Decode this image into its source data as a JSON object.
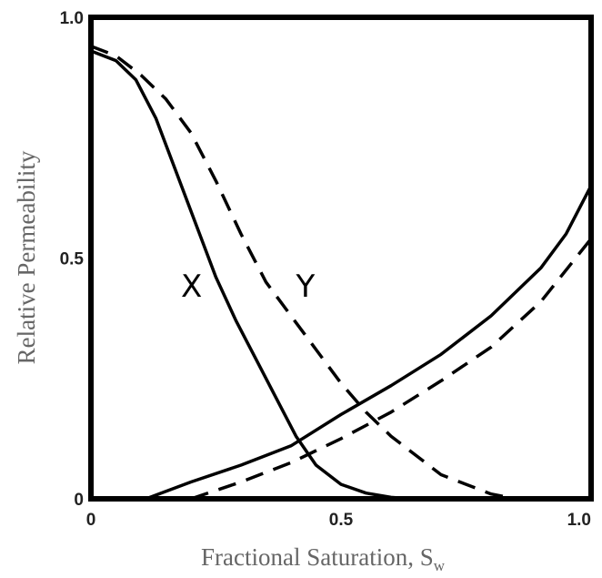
{
  "chart_data": {
    "type": "line",
    "title": "",
    "xlabel": "Fractional Saturation, S",
    "xlabel_subscript": "w",
    "ylabel": "Relative Permeability",
    "xlim": [
      0,
      1
    ],
    "ylim": [
      0,
      1
    ],
    "x_ticks": [
      "0",
      "0.5",
      "1.0"
    ],
    "y_ticks": [
      "0",
      "0.5",
      "1.0"
    ],
    "x_tick_values": [
      0,
      0.5,
      1
    ],
    "y_tick_values": [
      0,
      0.5,
      1
    ],
    "grid": false,
    "legend": "none",
    "curve_labels": [
      {
        "text": "X",
        "x": 0.18,
        "y": 0.42
      },
      {
        "text": "Y",
        "x": 0.41,
        "y": 0.42
      }
    ],
    "series": [
      {
        "style": "solid",
        "points": [
          [
            0,
            0.93
          ],
          [
            0.05,
            0.91
          ],
          [
            0.09,
            0.87
          ],
          [
            0.13,
            0.79
          ],
          [
            0.17,
            0.68
          ],
          [
            0.21,
            0.57
          ],
          [
            0.25,
            0.46
          ],
          [
            0.29,
            0.37
          ],
          [
            0.33,
            0.29
          ],
          [
            0.37,
            0.21
          ],
          [
            0.41,
            0.13
          ],
          [
            0.45,
            0.07
          ],
          [
            0.5,
            0.03
          ],
          [
            0.55,
            0.012
          ],
          [
            0.6,
            0.003
          ],
          [
            0.64,
            0
          ]
        ]
      },
      {
        "style": "dashed",
        "points": [
          [
            0,
            0.94
          ],
          [
            0.05,
            0.92
          ],
          [
            0.1,
            0.88
          ],
          [
            0.15,
            0.83
          ],
          [
            0.2,
            0.76
          ],
          [
            0.25,
            0.66
          ],
          [
            0.3,
            0.55
          ],
          [
            0.35,
            0.45
          ],
          [
            0.4,
            0.38
          ],
          [
            0.45,
            0.31
          ],
          [
            0.5,
            0.24
          ],
          [
            0.55,
            0.18
          ],
          [
            0.6,
            0.13
          ],
          [
            0.65,
            0.09
          ],
          [
            0.7,
            0.05
          ],
          [
            0.75,
            0.03
          ],
          [
            0.8,
            0.01
          ],
          [
            0.85,
            0
          ]
        ]
      },
      {
        "style": "solid",
        "points": [
          [
            0.11,
            0
          ],
          [
            0.2,
            0.035
          ],
          [
            0.3,
            0.07
          ],
          [
            0.4,
            0.11
          ],
          [
            0.5,
            0.175
          ],
          [
            0.6,
            0.235
          ],
          [
            0.7,
            0.3
          ],
          [
            0.8,
            0.38
          ],
          [
            0.9,
            0.48
          ],
          [
            0.95,
            0.55
          ],
          [
            1,
            0.65
          ]
        ]
      },
      {
        "style": "dashed",
        "points": [
          [
            0.2,
            0
          ],
          [
            0.3,
            0.035
          ],
          [
            0.4,
            0.075
          ],
          [
            0.5,
            0.125
          ],
          [
            0.6,
            0.18
          ],
          [
            0.7,
            0.245
          ],
          [
            0.8,
            0.315
          ],
          [
            0.9,
            0.41
          ],
          [
            1,
            0.54
          ]
        ]
      }
    ]
  }
}
